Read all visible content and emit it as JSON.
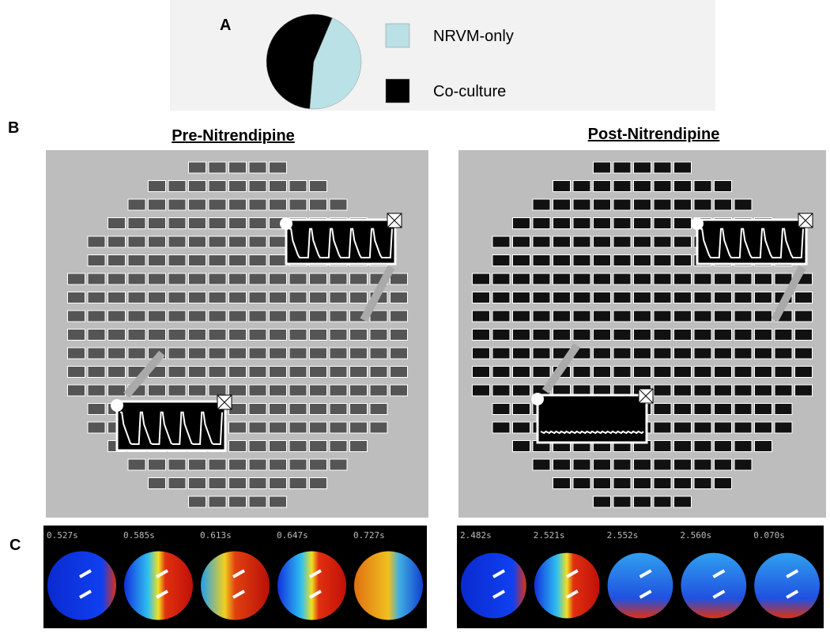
{
  "chart_data": {
    "type": "pie",
    "categories": [
      "NRVM-only",
      "Co-culture"
    ],
    "values": [
      45,
      55
    ],
    "colors": [
      "#b9e1e6",
      "#000000"
    ]
  },
  "panels": {
    "a": "A",
    "b": "B",
    "c": "C"
  },
  "titles": [
    "Pre-Nitrendipine",
    "Post-Nitrendipine"
  ],
  "times": [
    [
      "0.527s",
      "0.585s",
      "0.613s",
      "0.647s",
      "0.727s"
    ],
    [
      "2.482s",
      "2.521s",
      "2.552s",
      "2.560s",
      "0.070s"
    ]
  ]
}
